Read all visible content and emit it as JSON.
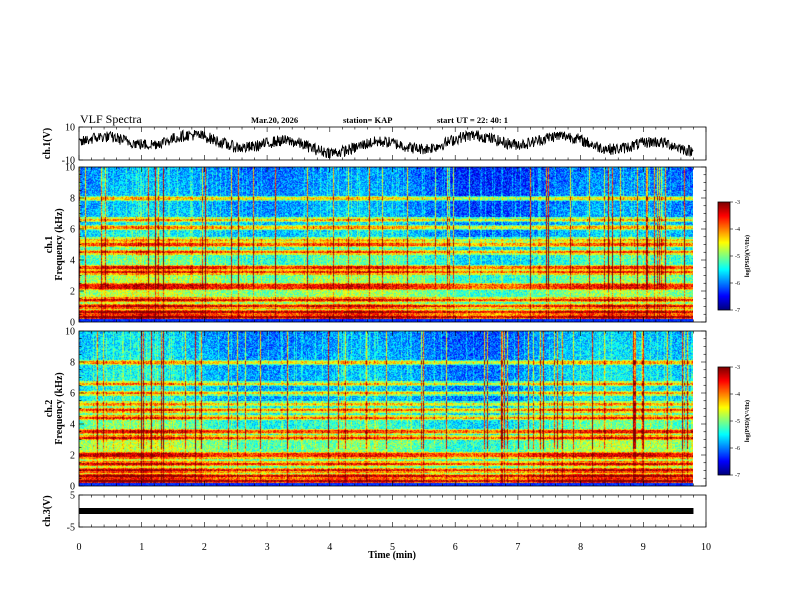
{
  "header": {
    "title": "VLF Spectra",
    "date": "Mar.20, 2026",
    "station": "station= KAP",
    "start": "start  UT =   22: 40: 1"
  },
  "chart_data": [
    {
      "type": "line",
      "name": "ch1-waveform",
      "ylabel": "ch.1(V)",
      "ylim": [
        -10,
        10
      ],
      "yticks": [
        "10",
        "-10"
      ],
      "x_range_min": [
        0,
        9.8
      ],
      "approx_mean": 0,
      "approx_amplitude": 8
    },
    {
      "type": "heatmap",
      "name": "ch1-spectrogram",
      "ylabel": "ch.1\nFrequency (kHz)",
      "ylim": [
        0,
        10
      ],
      "yticks": [
        "0",
        "2",
        "4",
        "6",
        "8",
        "10"
      ],
      "x_range_min": [
        0,
        9.8
      ],
      "colorbar": {
        "label": "log(PSD)(V²/Hz)",
        "range": [
          -7,
          -3
        ],
        "ticks": [
          "-3",
          "-4",
          "-5",
          "-6",
          "-7"
        ]
      },
      "bands_khz": [
        0.3,
        0.6,
        1.0,
        1.4,
        2.2,
        2.35,
        3.2,
        3.5,
        4.5,
        5.0,
        5.3,
        6.1,
        6.6,
        8.0
      ]
    },
    {
      "type": "heatmap",
      "name": "ch2-spectrogram",
      "ylabel": "ch.2\nFrequency (kHz)",
      "ylim": [
        0,
        10
      ],
      "yticks": [
        "0",
        "2",
        "4",
        "6",
        "8",
        "10"
      ],
      "x_range_min": [
        0,
        9.8
      ],
      "colorbar": {
        "label": "log(PSD)(V²/Hz)",
        "range": [
          -7,
          -3
        ],
        "ticks": [
          "-3",
          "-4",
          "-5",
          "-6",
          "-7"
        ]
      },
      "bands_khz": [
        0.3,
        0.6,
        1.0,
        1.4,
        1.9,
        2.0,
        3.1,
        3.5,
        4.4,
        4.9,
        5.3,
        6.0,
        6.6,
        8.0
      ]
    },
    {
      "type": "line",
      "name": "ch3-signal",
      "ylabel": "ch.3(V)",
      "ylim": [
        -5,
        5
      ],
      "yticks": [
        "5",
        "-5"
      ],
      "x_range_min": [
        0,
        9.8
      ],
      "level": 0
    }
  ],
  "xaxis": {
    "label": "Time  (min)",
    "range": [
      0,
      10
    ],
    "ticks": [
      "0",
      "1",
      "2",
      "3",
      "4",
      "5",
      "6",
      "7",
      "8",
      "9",
      "10"
    ]
  }
}
